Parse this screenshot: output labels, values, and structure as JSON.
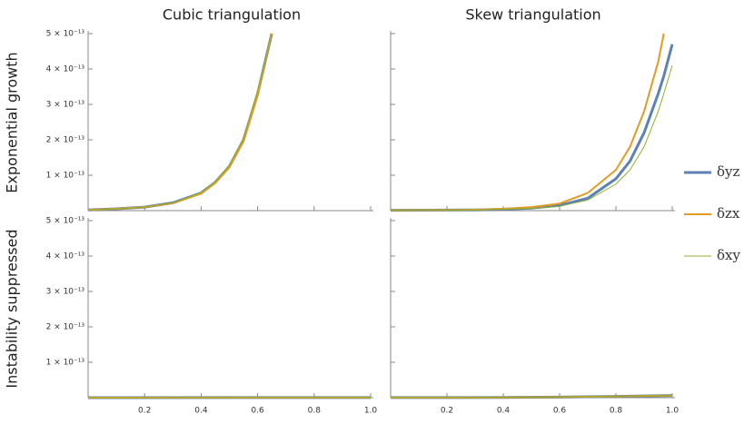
{
  "chart_data": [
    {
      "type": "line",
      "title": "Cubic triangulation",
      "ylabel": "Exponential growth",
      "x": [
        0,
        0.1,
        0.2,
        0.3,
        0.4,
        0.45,
        0.5,
        0.55,
        0.6,
        0.65
      ],
      "series": [
        {
          "color": "#5e81b5",
          "values": [
            2e-15,
            5e-15,
            1e-14,
            2.2e-14,
            5e-14,
            8e-14,
            1.25e-13,
            2e-13,
            3.3e-13,
            5e-13
          ]
        },
        {
          "color": "#e19c24",
          "values": [
            2e-15,
            5e-15,
            1e-14,
            2.1e-14,
            4.8e-14,
            7.8e-14,
            1.22e-13,
            1.95e-13,
            3.25e-13,
            5e-13
          ]
        },
        {
          "color": "#8fb032",
          "values": [
            2e-15,
            5e-15,
            1e-14,
            2.2e-14,
            5.1e-14,
            8.2e-14,
            1.28e-13,
            2.05e-13,
            3.4e-13,
            4.95e-13
          ]
        }
      ],
      "xlim": [
        0,
        1
      ],
      "ylim": [
        0,
        5e-13
      ],
      "xticks": [
        0.2,
        0.4,
        0.6,
        0.8,
        1
      ],
      "yticks": [
        {
          "value": 1e-13,
          "label": "1 × 10⁻¹³"
        },
        {
          "value": 2e-13,
          "label": "2 × 10⁻¹³"
        },
        {
          "value": 3e-13,
          "label": "3 × 10⁻¹³"
        },
        {
          "value": 4e-13,
          "label": "4 × 10⁻¹³"
        },
        {
          "value": 5e-13,
          "label": "5 × 10⁻¹³"
        }
      ]
    },
    {
      "type": "line",
      "title": "Skew triangulation",
      "x": [
        0,
        0.1,
        0.2,
        0.3,
        0.4,
        0.5,
        0.6,
        0.7,
        0.8,
        0.85,
        0.9,
        0.95,
        0.97,
        1
      ],
      "series": [
        {
          "name": "δyz",
          "color": "#5e81b5",
          "values": [
            1e-15,
            1.2e-15,
            1.5e-15,
            2e-15,
            4e-15,
            7e-15,
            1.5e-14,
            3.5e-14,
            9e-14,
            1.4e-13,
            2.2e-13,
            3.3e-13,
            3.8e-13,
            4.7e-13
          ]
        },
        {
          "name": "δzx",
          "color": "#e19c24",
          "values": [
            1e-15,
            1.2e-15,
            1.6e-15,
            2.5e-15,
            5e-15,
            1e-14,
            2e-14,
            5e-14,
            1.15e-13,
            1.8e-13,
            2.8e-13,
            4.2e-13,
            5e-13,
            null
          ]
        },
        {
          "name": "δxy",
          "color": "#8fb032",
          "values": [
            1e-15,
            1.1e-15,
            1.4e-15,
            2e-15,
            3.5e-15,
            6e-15,
            1.2e-14,
            3e-14,
            7.5e-14,
            1.15e-13,
            1.8e-13,
            2.8e-13,
            3.3e-13,
            4.1e-13
          ]
        }
      ],
      "legend": "right",
      "xlim": [
        0,
        1
      ],
      "ylim": [
        0,
        5e-13
      ],
      "xticks": [
        0.2,
        0.4,
        0.6,
        0.8,
        1
      ],
      "yticks": [
        1e-13,
        2e-13,
        3e-13,
        4e-13,
        5e-13
      ]
    },
    {
      "type": "line",
      "ylabel": "Instability suppressed",
      "x": [
        0,
        0.5,
        1
      ],
      "series": [
        {
          "color": "#5e81b5",
          "values": [
            1e-16,
            2e-16,
            3e-16
          ]
        },
        {
          "color": "#e19c24",
          "values": [
            1e-16,
            2e-16,
            3e-16
          ]
        },
        {
          "color": "#8fb032",
          "values": [
            1e-16,
            2e-16,
            3e-16
          ]
        }
      ],
      "xlim": [
        0,
        1
      ],
      "ylim": [
        0,
        5e-13
      ],
      "xticks": [
        0.2,
        0.4,
        0.6,
        0.8,
        {
          "value": 1,
          "label": "1.0"
        }
      ],
      "yticks": [
        {
          "value": 1e-13,
          "label": "1 × 10⁻¹³"
        },
        {
          "value": 2e-13,
          "label": "2 × 10⁻¹³"
        },
        {
          "value": 3e-13,
          "label": "3 × 10⁻¹³"
        },
        {
          "value": 4e-13,
          "label": "4 × 10⁻¹³"
        },
        {
          "value": 5e-13,
          "label": "5 × 10⁻¹³"
        }
      ]
    },
    {
      "type": "line",
      "x": [
        0,
        0.4,
        0.6,
        0.8,
        1
      ],
      "series": [
        {
          "color": "#5e81b5",
          "values": [
            2e-16,
            5e-16,
            1.5e-15,
            3.5e-15,
            6e-15
          ]
        },
        {
          "color": "#e19c24",
          "values": [
            2e-16,
            5e-16,
            1.5e-15,
            3.5e-15,
            6e-15
          ]
        },
        {
          "color": "#8fb032",
          "values": [
            2e-16,
            5e-16,
            1.5e-15,
            3.5e-15,
            6e-15
          ]
        }
      ],
      "xlim": [
        0,
        1
      ],
      "ylim": [
        0,
        5e-13
      ],
      "xticks": [
        0.2,
        0.4,
        0.6,
        0.8,
        {
          "value": 1,
          "label": "1.0"
        }
      ],
      "yticks": [
        1e-13,
        2e-13,
        3e-13,
        4e-13,
        5e-13
      ]
    }
  ]
}
